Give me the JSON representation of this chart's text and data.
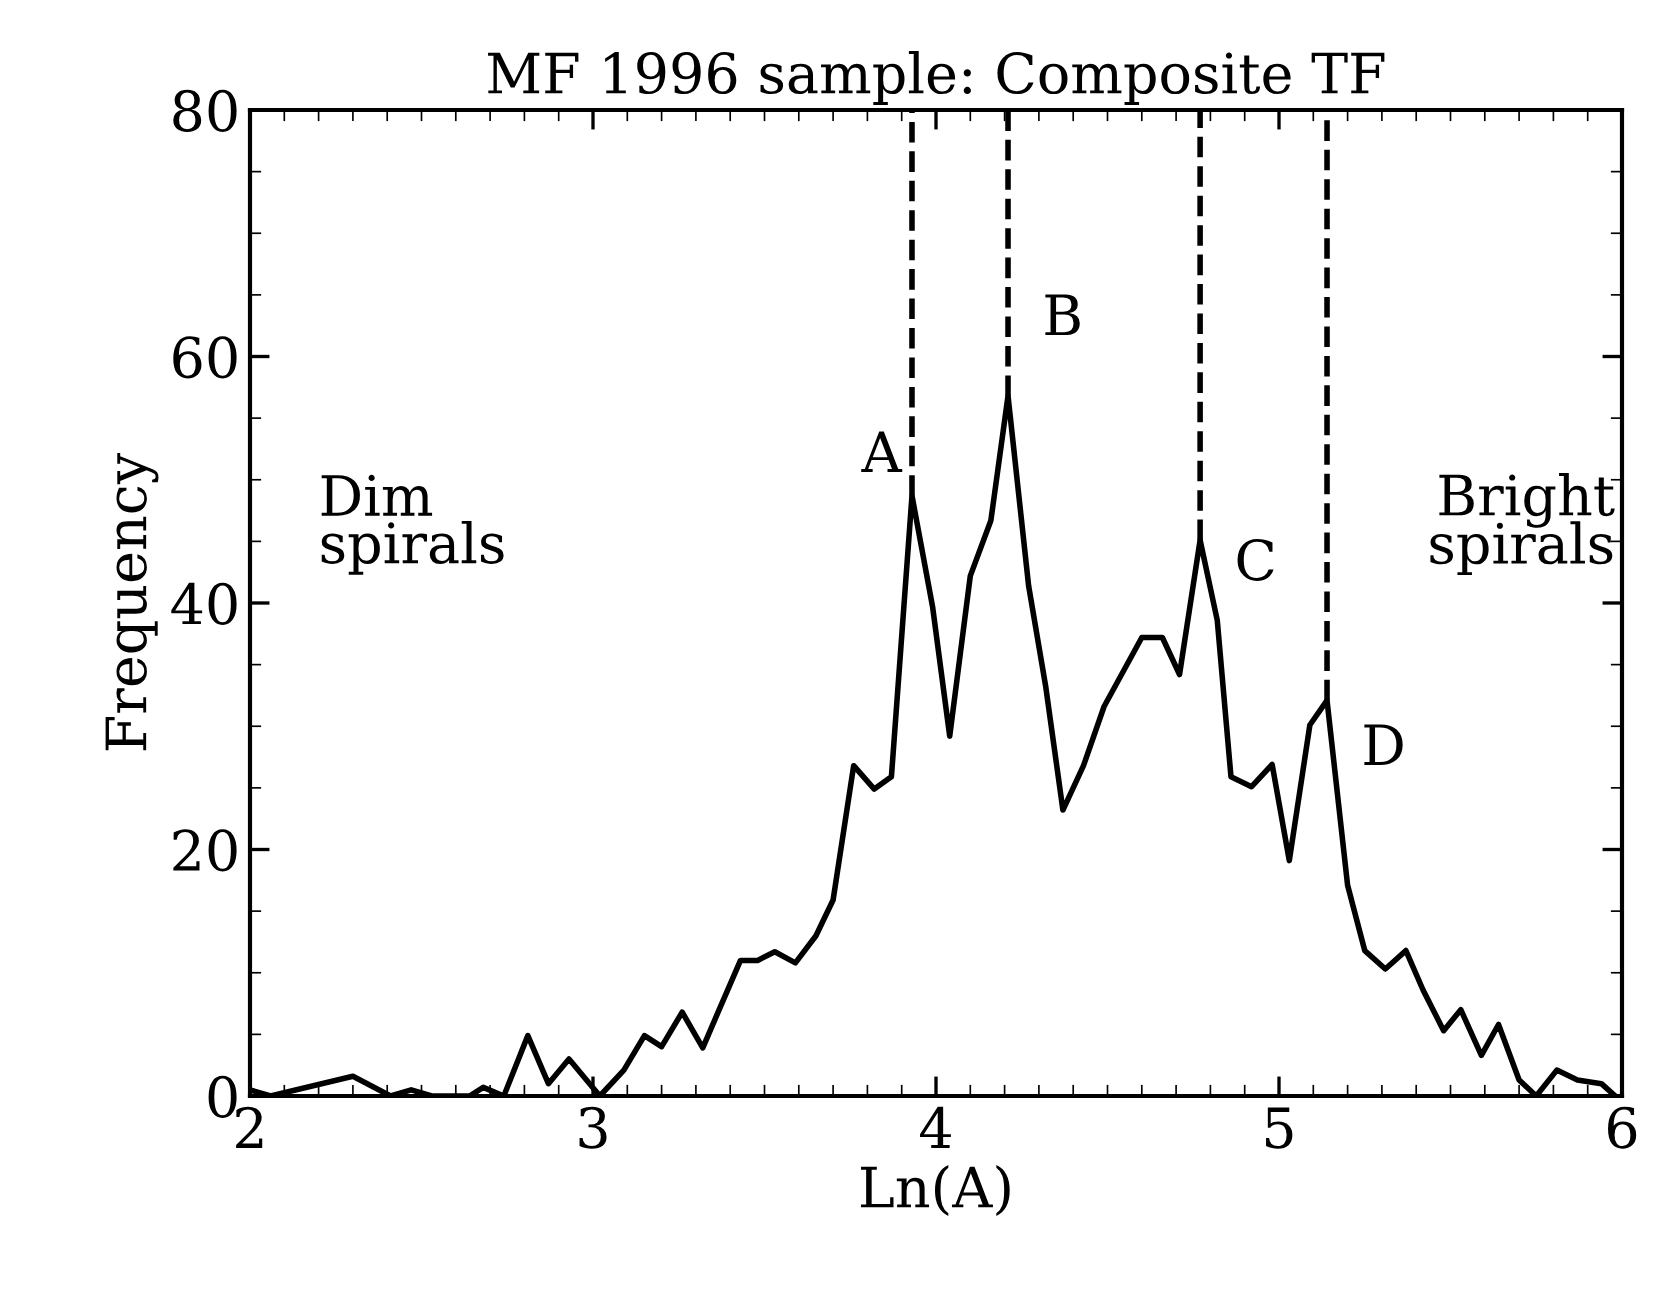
{
  "chart_data": {
    "type": "line",
    "title": "MF 1996 sample: Composite TF",
    "xlabel": "Ln(A)",
    "ylabel": "Frequency",
    "xlim": [
      2,
      6
    ],
    "ylim": [
      0,
      80
    ],
    "xticks": [
      2,
      3,
      4,
      5,
      6
    ],
    "yticks": [
      0,
      20,
      40,
      60,
      80
    ],
    "grid": false,
    "line_style": "solid",
    "marker": "none",
    "series": [
      {
        "color": "#000000",
        "x": [
          2.0,
          2.06,
          2.3,
          2.41,
          2.47,
          2.53,
          2.64,
          2.68,
          2.74,
          2.81,
          2.87,
          2.93,
          3.02,
          3.09,
          3.15,
          3.2,
          3.26,
          3.32,
          3.36,
          3.43,
          3.48,
          3.53,
          3.59,
          3.65,
          3.7,
          3.76,
          3.82,
          3.87,
          3.93,
          3.99,
          4.04,
          4.1,
          4.16,
          4.21,
          4.27,
          4.32,
          4.37,
          4.43,
          4.49,
          4.6,
          4.66,
          4.71,
          4.77,
          4.82,
          4.86,
          4.92,
          4.98,
          5.03,
          5.09,
          5.14,
          5.2,
          5.25,
          5.31,
          5.37,
          5.42,
          5.48,
          5.53,
          5.59,
          5.64,
          5.7,
          5.75,
          5.81,
          5.87,
          5.94,
          5.98
        ],
        "values": [
          0.5,
          0,
          1.6,
          0,
          0.5,
          0,
          0,
          0.7,
          0,
          4.9,
          1,
          3,
          0,
          2.1,
          4.9,
          4,
          6.8,
          3.9,
          6.5,
          11,
          11,
          11.7,
          10.8,
          13,
          15.9,
          26.8,
          24.9,
          25.9,
          48.7,
          39.7,
          29.2,
          42.2,
          46.7,
          56.8,
          41.4,
          33.2,
          23.2,
          26.8,
          31.6,
          37.2,
          37.2,
          34.2,
          45.1,
          38.6,
          25.9,
          25.1,
          26.9,
          19.1,
          30.1,
          32.1,
          17.1,
          11.8,
          10.3,
          11.8,
          8.6,
          5.3,
          7,
          3.3,
          5.8,
          1.3,
          0,
          2.1,
          1.3,
          1,
          0
        ]
      }
    ],
    "ref_lines": [
      {
        "axis": "x",
        "value": 3.93,
        "label": "A",
        "line_style": "dashed"
      },
      {
        "axis": "x",
        "value": 4.21,
        "label": "B",
        "line_style": "dashed"
      },
      {
        "axis": "x",
        "value": 4.77,
        "label": "C",
        "line_style": "dashed"
      },
      {
        "axis": "x",
        "value": 5.14,
        "label": "D",
        "line_style": "dashed"
      }
    ],
    "annotations": [
      "Dim\nspirals",
      "Bright\nspirals"
    ]
  }
}
